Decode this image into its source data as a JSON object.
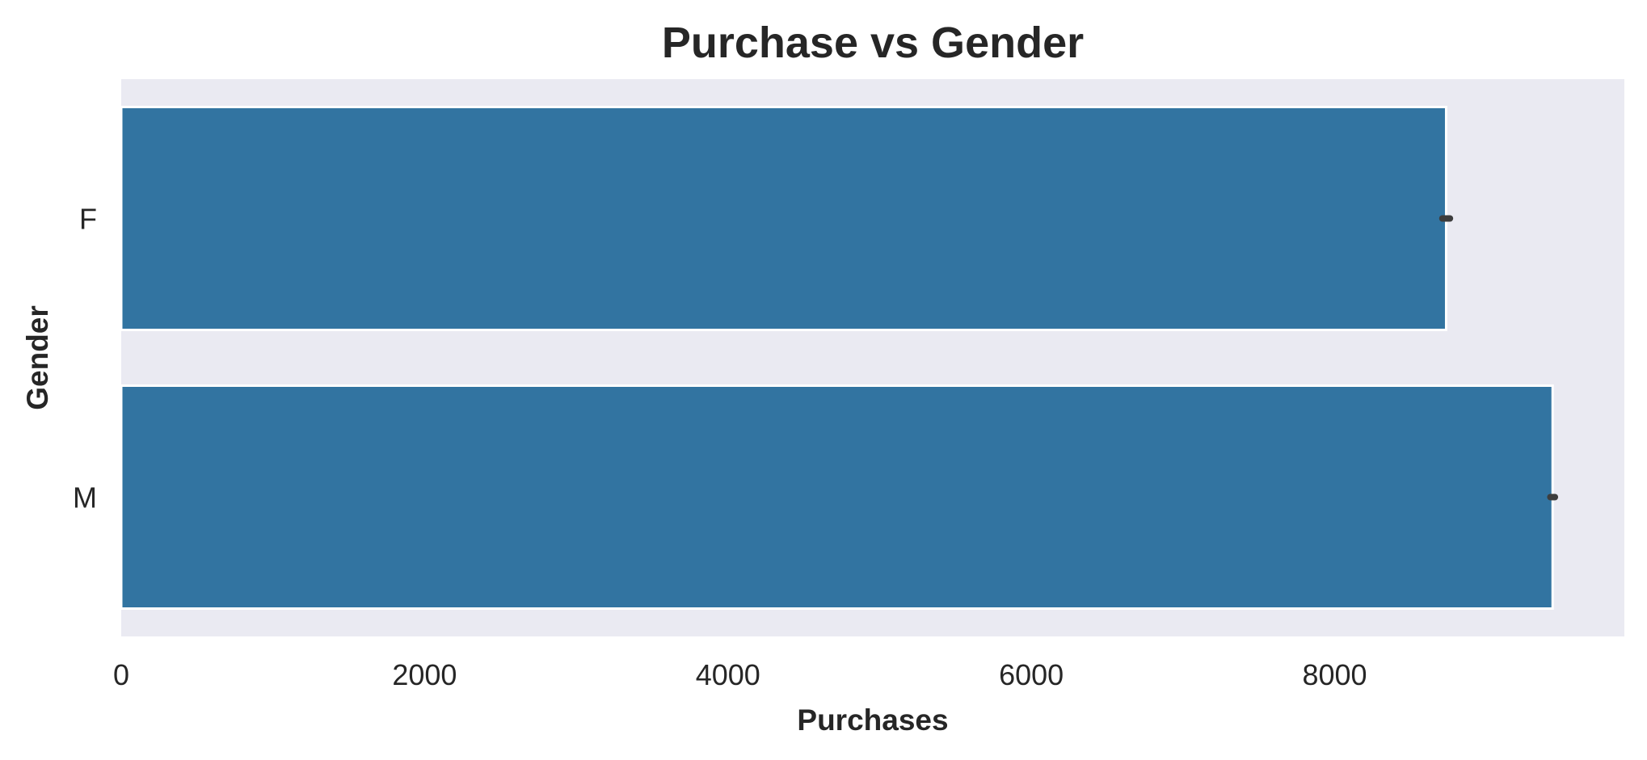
{
  "chart_data": {
    "type": "bar",
    "orientation": "horizontal",
    "title": "Purchase vs Gender",
    "xlabel": "Purchases",
    "ylabel": "Gender",
    "categories": [
      "F",
      "M"
    ],
    "values": [
      8735,
      9437
    ],
    "error_bars": [
      [
        8710,
        8760
      ],
      [
        9422,
        9452
      ]
    ],
    "xlim": [
      0,
      9910
    ],
    "xticks": [
      0,
      2000,
      4000,
      6000,
      8000
    ],
    "grid": false,
    "legend": "none",
    "colors": {
      "bar": "#3274a1",
      "background": "#eaeaf2",
      "error_bar": "#3d3d3d",
      "text": "#262626"
    }
  }
}
